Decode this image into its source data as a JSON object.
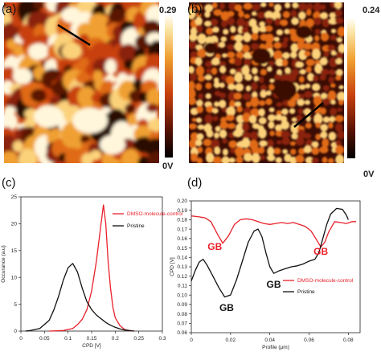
{
  "panels": {
    "a": {
      "label": "(a)",
      "scale_max": "0.29",
      "scale_min": "0V"
    },
    "b": {
      "label": "(b)",
      "scale_max": "0.24",
      "scale_min": "0V"
    },
    "c": {
      "label": "(c)"
    },
    "d": {
      "label": "(d)"
    }
  },
  "colors": {
    "red": "#e8202a",
    "black": "#111111",
    "afm_dark": "#2a0a04",
    "afm_mid": "#c8400c",
    "afm_light": "#fff6dc"
  },
  "chart_data": [
    {
      "type": "line",
      "xlabel": "CPD [V]",
      "ylabel": "Occurance (a.u)",
      "xlim": [
        0,
        0.3
      ],
      "ylim": [
        0,
        25
      ],
      "x_ticks": [
        "0",
        "0.05",
        "0.1",
        "0.15",
        "0.2",
        "0.25",
        "0.3"
      ],
      "y_ticks": [
        "0",
        "5",
        "10",
        "15",
        "20",
        "25"
      ],
      "legend_position": "top-right",
      "series": [
        {
          "name": "DMSO-molecule-control",
          "color": "#e8202a",
          "points": [
            [
              0.06,
              0.0
            ],
            [
              0.09,
              0.1
            ],
            [
              0.11,
              0.5
            ],
            [
              0.12,
              1.2
            ],
            [
              0.13,
              2.2
            ],
            [
              0.14,
              4.0
            ],
            [
              0.15,
              7.5
            ],
            [
              0.16,
              13.0
            ],
            [
              0.17,
              20.0
            ],
            [
              0.175,
              23.5
            ],
            [
              0.18,
              20.0
            ],
            [
              0.185,
              13.0
            ],
            [
              0.19,
              8.0
            ],
            [
              0.195,
              4.5
            ],
            [
              0.2,
              2.5
            ],
            [
              0.21,
              1.0
            ],
            [
              0.22,
              0.3
            ],
            [
              0.23,
              0.1
            ],
            [
              0.24,
              0.0
            ]
          ]
        },
        {
          "name": "Pristine",
          "color": "#111111",
          "points": [
            [
              0.01,
              0.0
            ],
            [
              0.02,
              0.1
            ],
            [
              0.04,
              0.5
            ],
            [
              0.06,
              2.0
            ],
            [
              0.07,
              4.0
            ],
            [
              0.08,
              6.5
            ],
            [
              0.09,
              9.5
            ],
            [
              0.1,
              11.8
            ],
            [
              0.11,
              12.6
            ],
            [
              0.12,
              11.0
            ],
            [
              0.13,
              8.0
            ],
            [
              0.14,
              5.5
            ],
            [
              0.15,
              4.0
            ],
            [
              0.16,
              3.0
            ],
            [
              0.17,
              2.3
            ],
            [
              0.18,
              1.6
            ],
            [
              0.19,
              1.1
            ],
            [
              0.2,
              0.7
            ],
            [
              0.21,
              0.4
            ],
            [
              0.22,
              0.2
            ],
            [
              0.24,
              0.0
            ]
          ]
        }
      ]
    },
    {
      "type": "line",
      "xlabel": "Profile (μm)",
      "ylabel": "CPD [V]",
      "xlim": [
        0,
        0.086
      ],
      "ylim": [
        0.06,
        0.2
      ],
      "x_ticks": [
        "0",
        "0.02",
        "0.04",
        "0.06",
        "0.08"
      ],
      "y_ticks": [
        "0.06",
        "0.07",
        "0.08",
        "0.09",
        "0.10",
        "0.11",
        "0.12",
        "0.13",
        "0.14",
        "0.15",
        "0.16",
        "0.17",
        "0.18",
        "0.19",
        "0.20"
      ],
      "legend_position": "bottom-right",
      "annotations": [
        {
          "text": "GB",
          "color": "#e8202a",
          "x": 0.012,
          "y": 0.148
        },
        {
          "text": "GB",
          "color": "#111111",
          "x": 0.018,
          "y": 0.083
        },
        {
          "text": "GB",
          "color": "#111111",
          "x": 0.042,
          "y": 0.108
        },
        {
          "text": "GB",
          "color": "#e8202a",
          "x": 0.066,
          "y": 0.143
        }
      ],
      "series": [
        {
          "name": "DMSO-molecule-control",
          "color": "#e8202a",
          "points": [
            [
              0.0,
              0.184
            ],
            [
              0.004,
              0.183
            ],
            [
              0.007,
              0.182
            ],
            [
              0.01,
              0.178
            ],
            [
              0.013,
              0.166
            ],
            [
              0.016,
              0.155
            ],
            [
              0.019,
              0.163
            ],
            [
              0.022,
              0.175
            ],
            [
              0.025,
              0.18
            ],
            [
              0.028,
              0.181
            ],
            [
              0.031,
              0.18
            ],
            [
              0.034,
              0.178
            ],
            [
              0.037,
              0.176
            ],
            [
              0.04,
              0.175
            ],
            [
              0.043,
              0.176
            ],
            [
              0.046,
              0.177
            ],
            [
              0.049,
              0.176
            ],
            [
              0.052,
              0.177
            ],
            [
              0.055,
              0.175
            ],
            [
              0.058,
              0.173
            ],
            [
              0.061,
              0.168
            ],
            [
              0.064,
              0.158
            ],
            [
              0.066,
              0.151
            ],
            [
              0.068,
              0.156
            ],
            [
              0.07,
              0.167
            ],
            [
              0.073,
              0.178
            ],
            [
              0.076,
              0.177
            ],
            [
              0.079,
              0.176
            ],
            [
              0.082,
              0.178
            ],
            [
              0.084,
              0.178
            ]
          ]
        },
        {
          "name": "Pristine",
          "color": "#111111",
          "points": [
            [
              0.0,
              0.115
            ],
            [
              0.002,
              0.126
            ],
            [
              0.004,
              0.135
            ],
            [
              0.006,
              0.138
            ],
            [
              0.008,
              0.132
            ],
            [
              0.011,
              0.12
            ],
            [
              0.014,
              0.108
            ],
            [
              0.017,
              0.098
            ],
            [
              0.02,
              0.1
            ],
            [
              0.023,
              0.116
            ],
            [
              0.026,
              0.136
            ],
            [
              0.029,
              0.156
            ],
            [
              0.032,
              0.168
            ],
            [
              0.034,
              0.17
            ],
            [
              0.036,
              0.162
            ],
            [
              0.038,
              0.145
            ],
            [
              0.04,
              0.13
            ],
            [
              0.042,
              0.123
            ],
            [
              0.045,
              0.126
            ],
            [
              0.048,
              0.128
            ],
            [
              0.051,
              0.13
            ],
            [
              0.054,
              0.131
            ],
            [
              0.057,
              0.133
            ],
            [
              0.06,
              0.136
            ],
            [
              0.063,
              0.138
            ],
            [
              0.065,
              0.145
            ],
            [
              0.067,
              0.16
            ],
            [
              0.069,
              0.175
            ],
            [
              0.071,
              0.186
            ],
            [
              0.074,
              0.192
            ],
            [
              0.077,
              0.191
            ],
            [
              0.079,
              0.185
            ],
            [
              0.08,
              0.18
            ]
          ]
        }
      ]
    }
  ]
}
